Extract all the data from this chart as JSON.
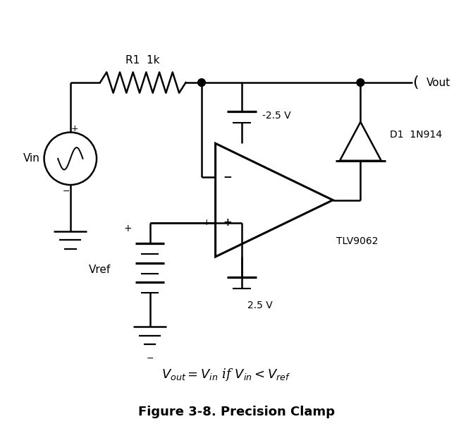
{
  "title": "Figure 3-8. Precision Clamp",
  "formula": "$V_{out} = V_{in}$ if $V_{in} < V_{ref}$",
  "background_color": "#ffffff",
  "line_color": "#000000",
  "fig_width": 6.71,
  "fig_height": 6.28,
  "labels": {
    "R1": "R1  1k",
    "Vin": "Vin",
    "Vout": "Vout",
    "D1": "D1  1N914",
    "op_amp": "TLV9062",
    "v_neg": "-2.5 V",
    "v_pos": "2.5 V",
    "Vref": "Vref"
  }
}
